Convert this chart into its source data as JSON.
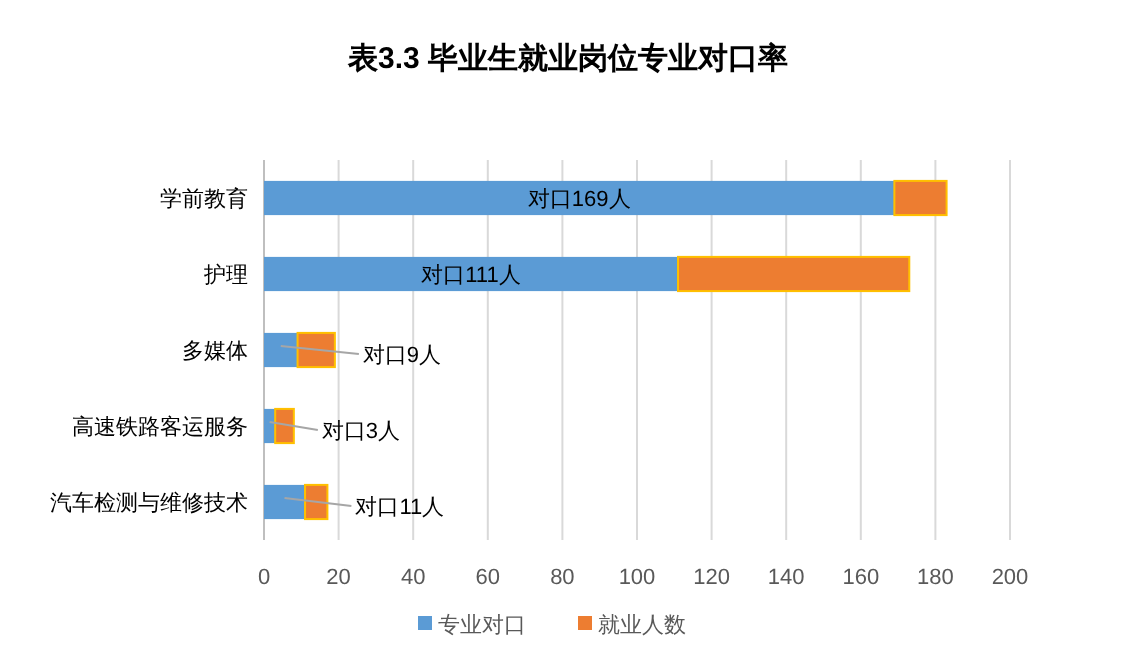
{
  "chart_data": {
    "type": "bar",
    "orientation": "horizontal",
    "stacked": true,
    "title": "表3.3      毕业生就业岗位专业对口率",
    "categories": [
      "学前教育",
      "护理",
      "多媒体",
      "高速铁路客运服务",
      "汽车检测与维修技术"
    ],
    "series": [
      {
        "name": "专业对口",
        "color": "#5b9bd5",
        "values": [
          169,
          111,
          9,
          3,
          11
        ],
        "value_labels": [
          "对口169人",
          "对口111人",
          "对口9人",
          "对口3人",
          "对口11人"
        ]
      },
      {
        "name": "就业人数",
        "color": "#ed7d31",
        "values": [
          14,
          62,
          10,
          5,
          6
        ]
      }
    ],
    "xlim": [
      0,
      200
    ],
    "xticks": [
      0,
      20,
      40,
      60,
      80,
      100,
      120,
      140,
      160,
      180,
      200
    ],
    "grid": "x",
    "legend": "bottom"
  }
}
